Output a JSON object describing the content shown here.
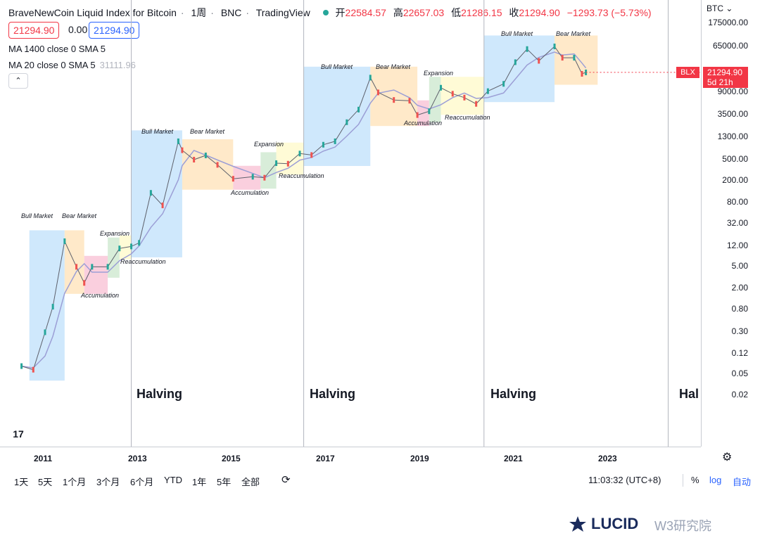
{
  "header": {
    "title": "BraveNewCoin Liquid Index for Bitcoin",
    "interval": "1周",
    "exchange": "BNC",
    "source": "TradingView",
    "ohlc": {
      "open_label": "开",
      "open": "22584.57",
      "high_label": "高",
      "high": "22657.03",
      "low_label": "低",
      "low": "21286.15",
      "close_label": "收",
      "close": "21294.90",
      "change": "−1293.73 (−5.73%)"
    },
    "sell_price": "21294.90",
    "spread": "0.00",
    "buy_price": "21294.90",
    "collapse_glyph": "⌃"
  },
  "indicators": {
    "ma1": "MA 1400 close 0 SMA 5",
    "ma2": "MA 20 close 0 SMA 5",
    "ma2_value": "31111.96"
  },
  "price_axis": {
    "unit": "BTC ⌄",
    "symbol_tag": "BLX",
    "last_price": "21294.90",
    "countdown": "5d 21h",
    "ticks": [
      "175000.00",
      "65000.00",
      "9000.00",
      "3500.00",
      "1300.00",
      "500.00",
      "200.00",
      "80.00",
      "32.00",
      "12.00",
      "5.00",
      "2.00",
      "0.80",
      "0.30",
      "0.12",
      "0.05",
      "0.02"
    ]
  },
  "time_axis": {
    "ticks": [
      "2011",
      "2013",
      "2015",
      "2017",
      "2019",
      "2021",
      "2023"
    ],
    "settings_icon": "⚙"
  },
  "bottom_bar": {
    "ranges": [
      "1天",
      "5天",
      "1个月",
      "3个月",
      "6个月",
      "YTD",
      "1年",
      "5年",
      "全部"
    ],
    "replay_icon": "⟳",
    "clock": "11:03:32 (UTC+8)",
    "percent": "%",
    "log": "log",
    "auto": "自动"
  },
  "annotations": {
    "halving": [
      "Halving",
      "Halving",
      "Halving",
      "Hal"
    ],
    "cycle1": {
      "bull": "Bull Market",
      "bear": "Bear Market",
      "accum": "Accumulation",
      "expan": "Expansion",
      "reaccum": "Reaccumulation"
    },
    "cycle2": {
      "bull": "Bull Market",
      "bear": "Bear Market",
      "accum": "Accumulation",
      "expan": "Expansion",
      "reaccum": "Reaccumulation"
    },
    "cycle3": {
      "bull": "Bull Market",
      "bear": "Bear Market",
      "accum": "Accumulation",
      "expan": "Expansion",
      "reaccum": "Reaccumulation"
    },
    "cycle4": {
      "bull": "Bull Market",
      "bear": "Bear Market"
    }
  },
  "logo": "17",
  "watermark": {
    "brand": "LUCID",
    "suffix": "W3研究院"
  },
  "colors": {
    "bull_zone": "#bbdefb",
    "bear_zone": "#ffe0b2",
    "accum_zone": "#f8bbd0",
    "expan_zone": "#c8e6c9",
    "reaccum_zone": "#fff9c4",
    "candle_up": "#26a69a",
    "candle_down": "#ef5350",
    "ma_line": "#9c9fd6",
    "last_price": "#f23645"
  },
  "chart_data": {
    "type": "line",
    "title": "BraveNewCoin Liquid Index for Bitcoin",
    "scale": "log",
    "ylim": [
      0.01,
      400000
    ],
    "x_range": [
      "2010-07",
      "2024-12"
    ],
    "series": [
      {
        "name": "BLX",
        "x": [
          "2010-07",
          "2010-10",
          "2011-01",
          "2011-03",
          "2011-06",
          "2011-09",
          "2011-11",
          "2012-01",
          "2012-05",
          "2012-08",
          "2012-11",
          "2013-01",
          "2013-04",
          "2013-07",
          "2013-11",
          "2013-12",
          "2014-03",
          "2014-06",
          "2014-09",
          "2015-01",
          "2015-06",
          "2015-09",
          "2015-12",
          "2016-03",
          "2016-06",
          "2016-09",
          "2016-12",
          "2017-03",
          "2017-06",
          "2017-09",
          "2017-12",
          "2018-02",
          "2018-06",
          "2018-10",
          "2018-12",
          "2019-03",
          "2019-06",
          "2019-09",
          "2019-12",
          "2020-03",
          "2020-06",
          "2020-10",
          "2021-01",
          "2021-04",
          "2021-07",
          "2021-11",
          "2022-01",
          "2022-04",
          "2022-06",
          "2022-07"
        ],
        "values": [
          0.07,
          0.06,
          0.3,
          0.9,
          15,
          5,
          2.5,
          5,
          5,
          11,
          12,
          14,
          120,
          70,
          1100,
          750,
          500,
          600,
          400,
          220,
          240,
          230,
          430,
          420,
          650,
          610,
          950,
          1100,
          2500,
          4300,
          17000,
          9000,
          6500,
          6300,
          3400,
          4000,
          11000,
          8500,
          7200,
          5500,
          9500,
          13000,
          33000,
          58000,
          35000,
          65000,
          40000,
          40000,
          20000,
          21294.9
        ]
      }
    ],
    "halvings": [
      "2012-11",
      "2016-07",
      "2020-05",
      "2024-04"
    ],
    "phases": [
      {
        "label": "Bull Market",
        "from": "2010-09",
        "to": "2011-06"
      },
      {
        "label": "Bear Market",
        "from": "2011-06",
        "to": "2011-11"
      },
      {
        "label": "Accumulation",
        "from": "2011-11",
        "to": "2012-05"
      },
      {
        "label": "Expansion",
        "from": "2012-05",
        "to": "2012-08"
      },
      {
        "label": "Reaccumulation",
        "from": "2012-08",
        "to": "2012-11"
      },
      {
        "label": "Bull Market",
        "from": "2012-11",
        "to": "2013-12"
      },
      {
        "label": "Bear Market",
        "from": "2013-12",
        "to": "2015-01"
      },
      {
        "label": "Accumulation",
        "from": "2015-01",
        "to": "2015-08"
      },
      {
        "label": "Expansion",
        "from": "2015-08",
        "to": "2015-12"
      },
      {
        "label": "Reaccumulation",
        "from": "2015-12",
        "to": "2016-07"
      },
      {
        "label": "Bull Market",
        "from": "2016-07",
        "to": "2017-12"
      },
      {
        "label": "Bear Market",
        "from": "2017-12",
        "to": "2018-12"
      },
      {
        "label": "Accumulation",
        "from": "2018-12",
        "to": "2019-03"
      },
      {
        "label": "Expansion",
        "from": "2019-03",
        "to": "2019-06"
      },
      {
        "label": "Reaccumulation",
        "from": "2019-06",
        "to": "2020-05"
      },
      {
        "label": "Bull Market",
        "from": "2020-05",
        "to": "2021-11"
      },
      {
        "label": "Bear Market",
        "from": "2021-11",
        "to": "2022-10"
      }
    ]
  }
}
